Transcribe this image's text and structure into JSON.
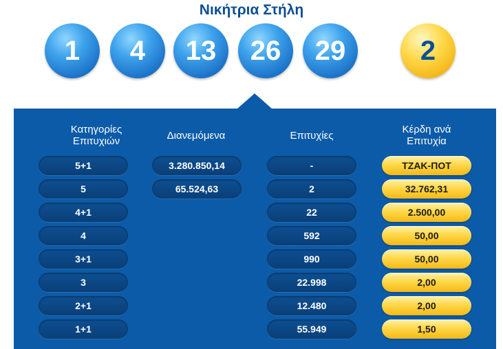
{
  "title": "Νικήτρια Στήλη",
  "numbers": [
    "1",
    "4",
    "13",
    "26",
    "29"
  ],
  "joker": "2",
  "columns": {
    "categories": "Κατηγορίες\nΕπιτυχιών",
    "distributed": "Διανεμόμενα",
    "winners": "Επιτυχίες",
    "prize": "Κέρδη ανά\nΕπιτυχία"
  },
  "rows": [
    {
      "category": "5+1",
      "distributed": "3.280.850,14",
      "winners": "-",
      "prize": "ΤΖΑΚ-ΠΟΤ"
    },
    {
      "category": "5",
      "distributed": "65.524,63",
      "winners": "2",
      "prize": "32.762,31"
    },
    {
      "category": "4+1",
      "distributed": "",
      "winners": "22",
      "prize": "2.500,00"
    },
    {
      "category": "4",
      "distributed": "",
      "winners": "592",
      "prize": "50,00"
    },
    {
      "category": "3+1",
      "distributed": "",
      "winners": "990",
      "prize": "50,00"
    },
    {
      "category": "3",
      "distributed": "",
      "winners": "22.998",
      "prize": "2,00"
    },
    {
      "category": "2+1",
      "distributed": "",
      "winners": "12.480",
      "prize": "2,00"
    },
    {
      "category": "1+1",
      "distributed": "",
      "winners": "55.949",
      "prize": "1,50"
    }
  ],
  "colors": {
    "panel": "#0c5ba8",
    "ball_blue": "#1c73c9",
    "ball_yellow": "#ffd94a",
    "title": "#0b4f94"
  }
}
